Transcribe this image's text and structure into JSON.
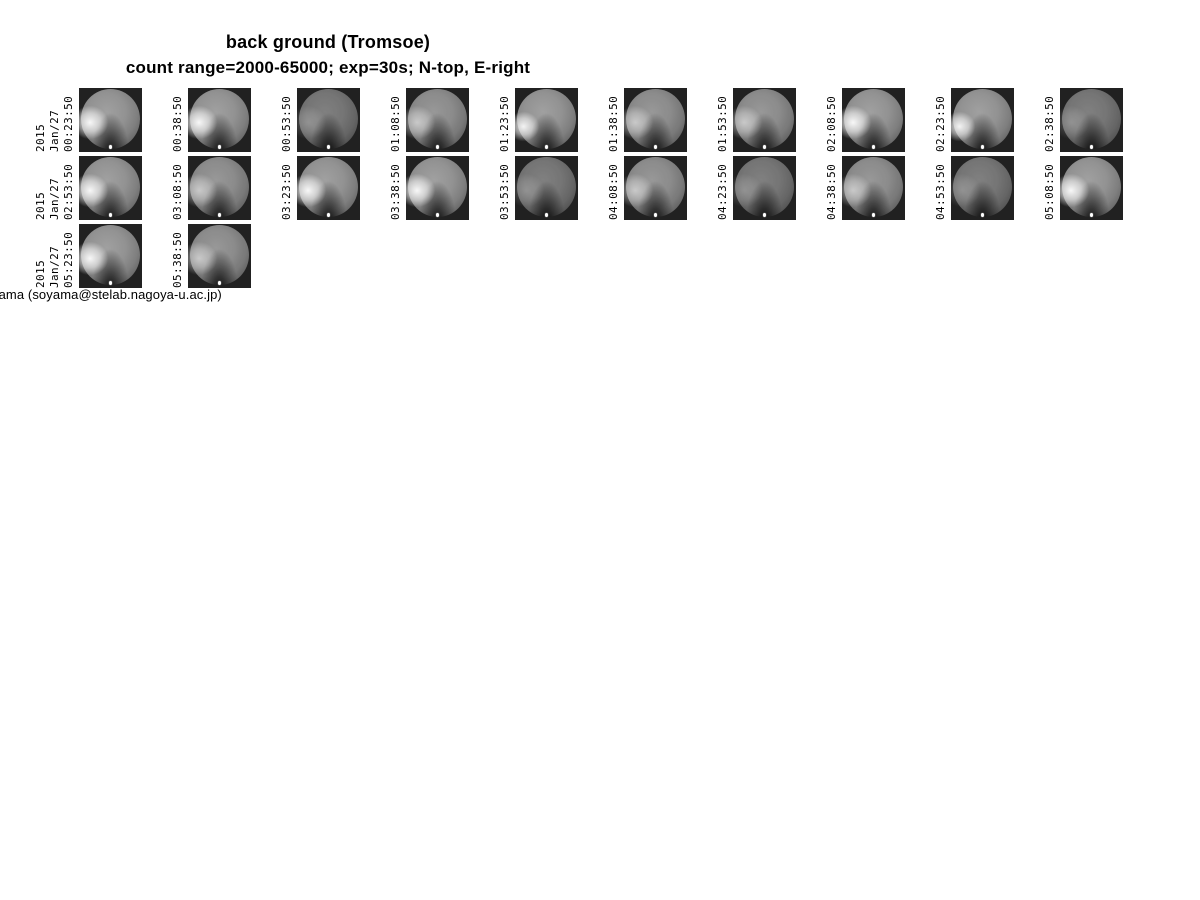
{
  "header": {
    "title": "back ground (Tromsoe)",
    "subtitle": "count range=2000-65000; exp=30s; N-top, E-right"
  },
  "montage": {
    "station": "Tromsoe",
    "year": "2015",
    "date": "Jan/27",
    "rows": [
      {
        "cells": [
          {
            "time": "00:23:50",
            "v": "b"
          },
          {
            "time": "00:38:50",
            "v": "b"
          },
          {
            "time": "00:53:50",
            "v": "d"
          },
          {
            "time": "01:08:50",
            "v": "m"
          },
          {
            "time": "01:23:50",
            "v": "bl"
          },
          {
            "time": "01:38:50",
            "v": "m"
          },
          {
            "time": "01:53:50",
            "v": "m"
          },
          {
            "time": "02:08:50",
            "v": "b"
          },
          {
            "time": "02:23:50",
            "v": "bl"
          },
          {
            "time": "02:38:50",
            "v": "d"
          }
        ]
      },
      {
        "cells": [
          {
            "time": "02:53:50",
            "v": "b"
          },
          {
            "time": "03:08:50",
            "v": "m"
          },
          {
            "time": "03:23:50",
            "v": "b"
          },
          {
            "time": "03:38:50",
            "v": "b"
          },
          {
            "time": "03:53:50",
            "v": "d"
          },
          {
            "time": "04:08:50",
            "v": "m"
          },
          {
            "time": "04:23:50",
            "v": "d"
          },
          {
            "time": "04:38:50",
            "v": "m"
          },
          {
            "time": "04:53:50",
            "v": "d"
          },
          {
            "time": "05:08:50",
            "v": "b"
          }
        ]
      },
      {
        "cells": [
          {
            "time": "05:23:50",
            "v": "b"
          },
          {
            "time": "05:38:50",
            "v": "m"
          }
        ]
      }
    ]
  },
  "footer": {
    "credit": "yama (soyama@stelab.nagoya-u.ac.jp)"
  }
}
